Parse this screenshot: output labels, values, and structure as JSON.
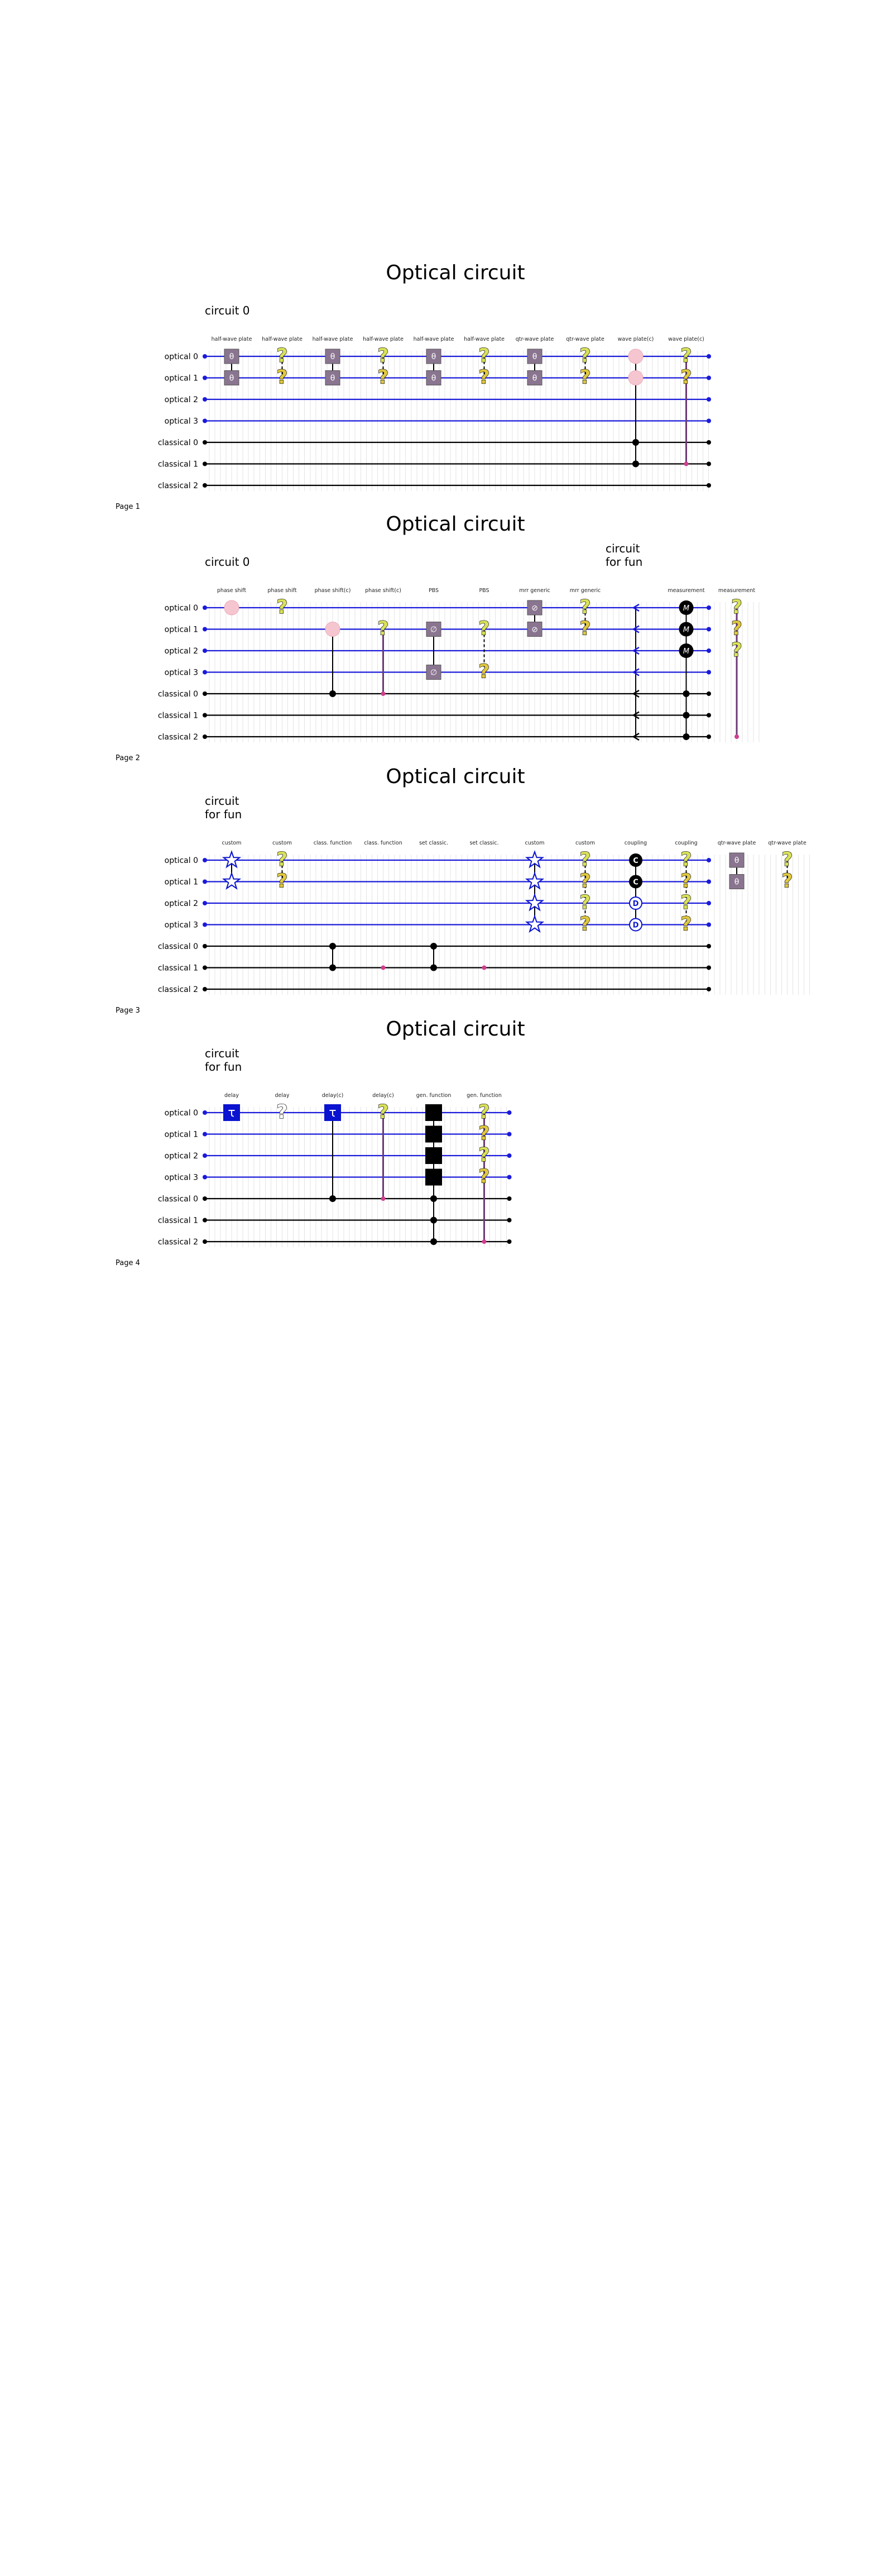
{
  "document": {
    "kind": "optical circuit renderer output"
  },
  "colors": {
    "optical_wire": "#1a1adb",
    "classical_wire": "#000000",
    "grid": "#d8d8d8",
    "plate": "#8a7590",
    "phase": "#f6c6d0",
    "question_lime": "#d9e25a",
    "question_yellow": "#e0c840",
    "dark": "#000000",
    "blue_gate": "#0a13cf",
    "condition_line": "#6b3a75",
    "condition_dot": "#d23d8f"
  },
  "pages": [
    {
      "title": "Optical circuit",
      "circuit_label_lines": [
        "circuit 0"
      ],
      "page_label": "Page 1",
      "wires": [
        {
          "label": "optical 0",
          "kind": "optical"
        },
        {
          "label": "optical 1",
          "kind": "optical"
        },
        {
          "label": "optical 2",
          "kind": "optical"
        },
        {
          "label": "optical 3",
          "kind": "optical"
        },
        {
          "label": "classical 0",
          "kind": "classical"
        },
        {
          "label": "classical 1",
          "kind": "classical"
        },
        {
          "label": "classical 2",
          "kind": "classical"
        }
      ],
      "columns": [
        {
          "label": "half-wave plate",
          "gates": [
            {
              "type": "plate",
              "wires": [
                0,
                1
              ],
              "text": "θ"
            }
          ]
        },
        {
          "label": "half-wave plate",
          "gates": [
            {
              "type": "question",
              "wires": [
                0,
                1
              ]
            }
          ]
        },
        {
          "label": "half-wave plate",
          "gates": [
            {
              "type": "plate",
              "wires": [
                0,
                1
              ],
              "text": "θ"
            }
          ]
        },
        {
          "label": "half-wave plate",
          "gates": [
            {
              "type": "question",
              "wires": [
                0,
                1
              ]
            }
          ]
        },
        {
          "label": "half-wave plate",
          "gates": [
            {
              "type": "plate",
              "wires": [
                0,
                1
              ],
              "text": "θ"
            }
          ]
        },
        {
          "label": "half-wave plate",
          "gates": [
            {
              "type": "question",
              "wires": [
                0,
                1
              ]
            }
          ]
        },
        {
          "label": "qtr-wave plate",
          "gates": [
            {
              "type": "plate",
              "wires": [
                0,
                1
              ],
              "text": "θ"
            }
          ]
        },
        {
          "label": "qtr-wave plate",
          "gates": [
            {
              "type": "question",
              "wires": [
                0,
                1
              ]
            }
          ]
        },
        {
          "label": "wave plate(c)",
          "gates": [
            {
              "type": "phase",
              "wires": [
                0,
                1
              ]
            },
            {
              "type": "control",
              "wires": [
                4,
                5
              ]
            }
          ]
        },
        {
          "label": "wave plate(c)",
          "gates": [
            {
              "type": "question",
              "wires": [
                0,
                1
              ]
            },
            {
              "type": "condition",
              "wires": [
                5
              ]
            }
          ]
        }
      ]
    },
    {
      "title": "Optical circuit",
      "circuit_label_lines": [
        "circuit 0"
      ],
      "right_label_lines": [
        "circuit",
        "for fun"
      ],
      "page_label": "Page 2",
      "wires": [
        {
          "label": "optical 0",
          "kind": "optical"
        },
        {
          "label": "optical 1",
          "kind": "optical"
        },
        {
          "label": "optical 2",
          "kind": "optical"
        },
        {
          "label": "optical 3",
          "kind": "optical"
        },
        {
          "label": "classical 0",
          "kind": "classical"
        },
        {
          "label": "classical 1",
          "kind": "classical"
        },
        {
          "label": "classical 2",
          "kind": "classical"
        }
      ],
      "columns": [
        {
          "label": "phase shift",
          "gates": [
            {
              "type": "phase",
              "wires": [
                0
              ]
            }
          ]
        },
        {
          "label": "phase shift",
          "gates": [
            {
              "type": "question",
              "wires": [
                0
              ]
            }
          ]
        },
        {
          "label": "phase shift(c)",
          "gates": [
            {
              "type": "phase",
              "wires": [
                1
              ]
            },
            {
              "type": "control",
              "wires": [
                4
              ]
            }
          ]
        },
        {
          "label": "phase shift(c)",
          "gates": [
            {
              "type": "question",
              "wires": [
                1
              ]
            },
            {
              "type": "condition",
              "wires": [
                4
              ]
            }
          ]
        },
        {
          "label": "PBS",
          "gates": [
            {
              "type": "plate",
              "wires": [
                1,
                3
              ],
              "text": "∅"
            }
          ]
        },
        {
          "label": "PBS",
          "gates": [
            {
              "type": "question",
              "wires": [
                1,
                3
              ]
            }
          ]
        },
        {
          "label": "mrr generic",
          "gates": [
            {
              "type": "plate",
              "wires": [
                0,
                1
              ],
              "text": "⊘"
            }
          ]
        },
        {
          "label": "mrr generic",
          "gates": [
            {
              "type": "question",
              "wires": [
                0,
                1
              ]
            }
          ]
        },
        {
          "label": "",
          "gates": [
            {
              "type": "marker",
              "wires": [
                0,
                1,
                2,
                3,
                4,
                5,
                6
              ]
            }
          ]
        },
        {
          "label": "measurement",
          "gates": [
            {
              "type": "measure",
              "wires": [
                0,
                1,
                2
              ]
            },
            {
              "type": "control",
              "wires": [
                4,
                5,
                6
              ]
            }
          ]
        },
        {
          "label": "measurement",
          "gates": [
            {
              "type": "question",
              "wires": [
                0,
                1,
                2
              ]
            },
            {
              "type": "condition",
              "wires": [
                6
              ]
            }
          ]
        }
      ]
    },
    {
      "title": "Optical circuit",
      "circuit_label_lines": [
        "circuit",
        "for fun"
      ],
      "page_label": "Page 3",
      "wires": [
        {
          "label": "optical 0",
          "kind": "optical"
        },
        {
          "label": "optical 1",
          "kind": "optical"
        },
        {
          "label": "optical 2",
          "kind": "optical"
        },
        {
          "label": "optical 3",
          "kind": "optical"
        },
        {
          "label": "classical 0",
          "kind": "classical"
        },
        {
          "label": "classical 1",
          "kind": "classical"
        },
        {
          "label": "classical 2",
          "kind": "classical"
        }
      ],
      "columns": [
        {
          "label": "custom",
          "gates": [
            {
              "type": "star",
              "wires": [
                0,
                1
              ]
            }
          ]
        },
        {
          "label": "custom",
          "gates": [
            {
              "type": "question",
              "wires": [
                0,
                1
              ]
            }
          ]
        },
        {
          "label": "class. function",
          "gates": [
            {
              "type": "control",
              "wires": [
                4,
                5
              ]
            }
          ]
        },
        {
          "label": "class. function",
          "gates": [
            {
              "type": "condition",
              "wires": [
                5
              ]
            }
          ]
        },
        {
          "label": "set classic.",
          "gates": [
            {
              "type": "control",
              "wires": [
                4,
                5
              ]
            }
          ]
        },
        {
          "label": "set classic.",
          "gates": [
            {
              "type": "condition",
              "wires": [
                5
              ]
            }
          ]
        },
        {
          "label": "custom",
          "gates": [
            {
              "type": "star",
              "wires": [
                0,
                1,
                2,
                3
              ]
            }
          ]
        },
        {
          "label": "custom",
          "gates": [
            {
              "type": "question",
              "wires": [
                0,
                1,
                2,
                3
              ]
            }
          ]
        },
        {
          "label": "coupling",
          "gates": [
            {
              "type": "coupling",
              "wires": [
                0,
                1,
                2,
                3
              ],
              "letters": [
                "C",
                "C",
                "D",
                "D"
              ]
            }
          ]
        },
        {
          "label": "coupling",
          "gates": [
            {
              "type": "question",
              "wires": [
                0,
                1,
                2,
                3
              ]
            }
          ]
        },
        {
          "label": "qtr-wave plate",
          "gates": [
            {
              "type": "plate",
              "wires": [
                0,
                1
              ],
              "text": "θ"
            }
          ]
        },
        {
          "label": "qtr-wave plate",
          "gates": [
            {
              "type": "question",
              "wires": [
                0,
                1
              ]
            }
          ]
        }
      ]
    },
    {
      "title": "Optical circuit",
      "circuit_label_lines": [
        "circuit",
        "for fun"
      ],
      "page_label": "Page 4",
      "wires": [
        {
          "label": "optical 0",
          "kind": "optical"
        },
        {
          "label": "optical 1",
          "kind": "optical"
        },
        {
          "label": "optical 2",
          "kind": "optical"
        },
        {
          "label": "optical 3",
          "kind": "optical"
        },
        {
          "label": "classical 0",
          "kind": "classical"
        },
        {
          "label": "classical 1",
          "kind": "classical"
        },
        {
          "label": "classical 2",
          "kind": "classical"
        }
      ],
      "columns": [
        {
          "label": "delay",
          "gates": [
            {
              "type": "tau",
              "wires": [
                0
              ]
            }
          ]
        },
        {
          "label": "delay",
          "gates": [
            {
              "type": "question_dark",
              "wires": [
                0
              ]
            }
          ]
        },
        {
          "label": "delay(c)",
          "gates": [
            {
              "type": "tau",
              "wires": [
                0
              ]
            },
            {
              "type": "control",
              "wires": [
                4
              ]
            }
          ]
        },
        {
          "label": "delay(c)",
          "gates": [
            {
              "type": "question",
              "wires": [
                0
              ]
            },
            {
              "type": "condition",
              "wires": [
                4
              ]
            }
          ]
        },
        {
          "label": "gen. function",
          "gates": [
            {
              "type": "blackbox",
              "wires": [
                0,
                1,
                2,
                3
              ]
            },
            {
              "type": "control",
              "wires": [
                4,
                5,
                6
              ]
            }
          ]
        },
        {
          "label": "gen. function",
          "gates": [
            {
              "type": "question",
              "wires": [
                0,
                1,
                2,
                3
              ]
            },
            {
              "type": "condition",
              "wires": [
                6
              ]
            }
          ]
        }
      ]
    }
  ]
}
